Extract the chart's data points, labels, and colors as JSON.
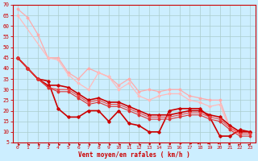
{
  "bg_color": "#cceeff",
  "grid_color": "#aacccc",
  "xlabel": "Vent moyen/en rafales ( km/h )",
  "xlabel_color": "#cc0000",
  "tick_color": "#cc0000",
  "ylabel_ticks": [
    5,
    10,
    15,
    20,
    25,
    30,
    35,
    40,
    45,
    50,
    55,
    60,
    65,
    70
  ],
  "xlabel_ticks": [
    0,
    1,
    2,
    3,
    4,
    5,
    6,
    7,
    8,
    9,
    10,
    11,
    12,
    13,
    14,
    15,
    16,
    17,
    18,
    19,
    20,
    21,
    22,
    23
  ],
  "xmin": -0.5,
  "xmax": 23.5,
  "ymin": 5,
  "ymax": 70,
  "series": [
    {
      "x": [
        0,
        1,
        2,
        3,
        4,
        5,
        6,
        7,
        8,
        9,
        10,
        11,
        12,
        13,
        14,
        15,
        16,
        17,
        18,
        19,
        20,
        21,
        22,
        23
      ],
      "y": [
        68,
        64,
        56,
        45,
        45,
        38,
        35,
        40,
        38,
        36,
        32,
        35,
        29,
        30,
        29,
        30,
        30,
        27,
        26,
        25,
        25,
        12,
        10,
        10
      ],
      "color": "#ffaaaa",
      "lw": 0.9,
      "marker": "D",
      "ms": 1.5
    },
    {
      "x": [
        0,
        3,
        4,
        5,
        6,
        7,
        8,
        9,
        10,
        11,
        12,
        13,
        14,
        15,
        16,
        17,
        18,
        19,
        20,
        21,
        22,
        23
      ],
      "y": [
        65,
        45,
        44,
        37,
        33,
        30,
        38,
        36,
        30,
        33,
        27,
        25,
        27,
        28,
        28,
        25,
        24,
        22,
        23,
        11,
        9,
        9
      ],
      "color": "#ffbbbb",
      "lw": 0.9,
      "marker": "D",
      "ms": 1.5
    },
    {
      "x": [
        0,
        1,
        2,
        3,
        4,
        5,
        6,
        7,
        8,
        9,
        10,
        11,
        12,
        13,
        14,
        15,
        16,
        17,
        18,
        19,
        20,
        21,
        22,
        23
      ],
      "y": [
        45,
        40,
        35,
        34,
        21,
        17,
        17,
        20,
        20,
        15,
        20,
        14,
        13,
        10,
        10,
        20,
        21,
        21,
        21,
        17,
        8,
        8,
        11,
        10
      ],
      "color": "#cc0000",
      "lw": 1.2,
      "marker": "D",
      "ms": 1.8
    },
    {
      "x": [
        0,
        1,
        2,
        3,
        4,
        5,
        6,
        7,
        8,
        9,
        10,
        11,
        12,
        13,
        14,
        15,
        16,
        17,
        18,
        19,
        20,
        21,
        22,
        23
      ],
      "y": [
        45,
        40,
        35,
        32,
        32,
        31,
        28,
        25,
        26,
        24,
        24,
        22,
        20,
        18,
        18,
        18,
        19,
        20,
        20,
        18,
        17,
        13,
        10,
        10
      ],
      "color": "#cc0000",
      "lw": 1.2,
      "marker": "D",
      "ms": 1.8
    },
    {
      "x": [
        0,
        1,
        2,
        3,
        4,
        5,
        6,
        7,
        8,
        9,
        10,
        11,
        12,
        13,
        14,
        15,
        16,
        17,
        18,
        19,
        20,
        21,
        22,
        23
      ],
      "y": [
        45,
        40,
        35,
        31,
        30,
        30,
        27,
        24,
        25,
        23,
        23,
        21,
        19,
        17,
        17,
        17,
        18,
        19,
        19,
        17,
        16,
        12,
        9,
        9
      ],
      "color": "#ee4444",
      "lw": 0.8,
      "marker": "D",
      "ms": 1.5
    },
    {
      "x": [
        0,
        1,
        2,
        3,
        4,
        5,
        6,
        7,
        8,
        9,
        10,
        11,
        12,
        13,
        14,
        15,
        16,
        17,
        18,
        19,
        20,
        21,
        22,
        23
      ],
      "y": [
        45,
        40,
        35,
        31,
        29,
        29,
        26,
        23,
        24,
        22,
        22,
        20,
        18,
        16,
        16,
        16,
        17,
        18,
        18,
        16,
        15,
        11,
        8,
        8
      ],
      "color": "#dd3333",
      "lw": 0.8,
      "marker": "D",
      "ms": 1.5
    }
  ],
  "arrow_angles": [
    225,
    225,
    225,
    225,
    225,
    225,
    225,
    225,
    225,
    225,
    225,
    225,
    225,
    270,
    270,
    270,
    315,
    315,
    45,
    45,
    45,
    90,
    135,
    135
  ]
}
